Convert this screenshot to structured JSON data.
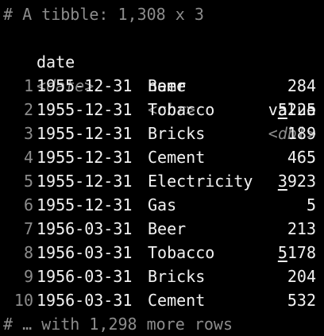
{
  "console": {
    "header": "# A tibble: 1,308 x 3",
    "columns": [
      {
        "name": "date",
        "type": "<date>"
      },
      {
        "name": "name",
        "type": "<chr>"
      },
      {
        "name": "value",
        "type": "<dbl>"
      }
    ],
    "rows": [
      {
        "n": "1",
        "date": "1955-12-31",
        "name": "Beer",
        "value_hi": "",
        "value_lo": "284"
      },
      {
        "n": "2",
        "date": "1955-12-31",
        "name": "Tobacco",
        "value_hi": "5",
        "value_lo": "225"
      },
      {
        "n": "3",
        "date": "1955-12-31",
        "name": "Bricks",
        "value_hi": "",
        "value_lo": "189"
      },
      {
        "n": "4",
        "date": "1955-12-31",
        "name": "Cement",
        "value_hi": "",
        "value_lo": "465"
      },
      {
        "n": "5",
        "date": "1955-12-31",
        "name": "Electricity",
        "value_hi": "3",
        "value_lo": "923"
      },
      {
        "n": "6",
        "date": "1955-12-31",
        "name": "Gas",
        "value_hi": "",
        "value_lo": "5"
      },
      {
        "n": "7",
        "date": "1956-03-31",
        "name": "Beer",
        "value_hi": "",
        "value_lo": "213"
      },
      {
        "n": "8",
        "date": "1956-03-31",
        "name": "Tobacco",
        "value_hi": "5",
        "value_lo": "178"
      },
      {
        "n": "9",
        "date": "1956-03-31",
        "name": "Bricks",
        "value_hi": "",
        "value_lo": "204"
      },
      {
        "n": "10",
        "date": "1956-03-31",
        "name": "Cement",
        "value_hi": "",
        "value_lo": "532"
      }
    ],
    "footer": "# … with 1,298 more rows"
  },
  "colors": {
    "background": "#000000",
    "text": "#f2f2f2",
    "muted": "#8c8c8c"
  }
}
